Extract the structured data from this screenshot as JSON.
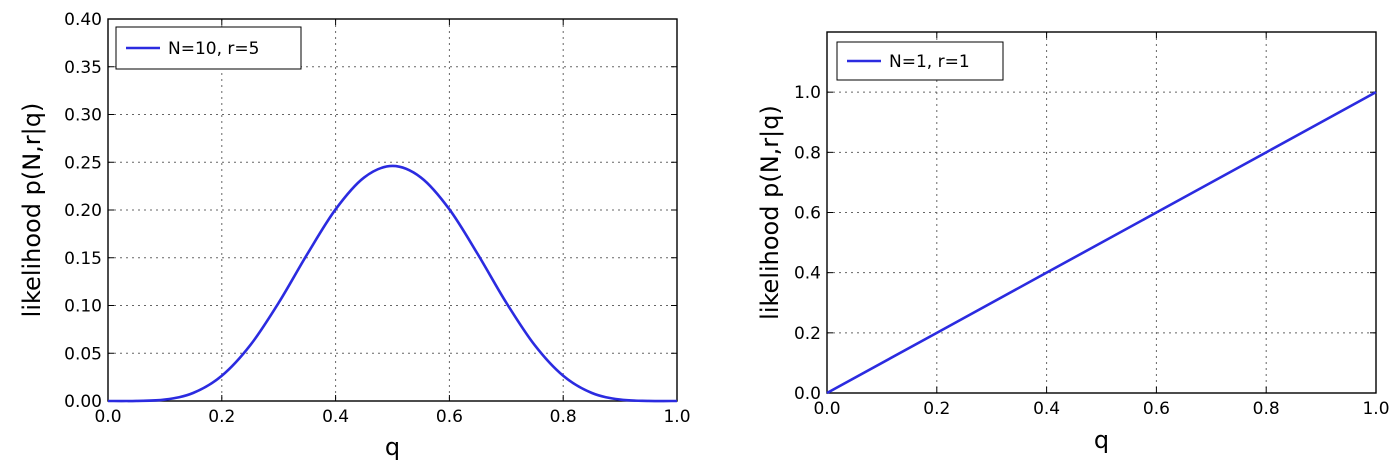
{
  "chart_data": [
    {
      "type": "line",
      "ylabel": "likelihood p(N,r|q)",
      "xlabel": "q",
      "xlim": [
        0.0,
        1.0
      ],
      "ylim": [
        0.0,
        0.4
      ],
      "xticks": [
        "0.0",
        "0.2",
        "0.4",
        "0.6",
        "0.8",
        "1.0"
      ],
      "yticks": [
        "0.00",
        "0.05",
        "0.10",
        "0.15",
        "0.20",
        "0.25",
        "0.30",
        "0.35",
        "0.40"
      ],
      "grid": true,
      "legend_position": "top-left",
      "series": [
        {
          "name": "N=10, r=5",
          "color": "#2b2be0",
          "x": [
            0.0,
            0.05,
            0.1,
            0.15,
            0.2,
            0.25,
            0.3,
            0.35,
            0.4,
            0.45,
            0.5,
            0.55,
            0.6,
            0.65,
            0.7,
            0.75,
            0.8,
            0.85,
            0.9,
            0.95,
            1.0
          ],
          "y": [
            0.0,
            0.0001,
            0.0015,
            0.0085,
            0.0264,
            0.0584,
            0.1029,
            0.1536,
            0.2007,
            0.234,
            0.2461,
            0.234,
            0.2007,
            0.1536,
            0.1029,
            0.0584,
            0.0264,
            0.0085,
            0.0015,
            0.0001,
            0.0
          ]
        }
      ]
    },
    {
      "type": "line",
      "ylabel": "likelihood p(N,r|q)",
      "xlabel": "q",
      "xlim": [
        0.0,
        1.0
      ],
      "ylim": [
        0.0,
        1.2
      ],
      "xticks": [
        "0.0",
        "0.2",
        "0.4",
        "0.6",
        "0.8",
        "1.0"
      ],
      "yticks": [
        "0.0",
        "0.2",
        "0.4",
        "0.6",
        "0.8",
        "1.0"
      ],
      "grid": true,
      "legend_position": "top-left",
      "series": [
        {
          "name": "N=1, r=1",
          "color": "#2b2be0",
          "x": [
            0.0,
            0.2,
            0.4,
            0.6,
            0.8,
            1.0
          ],
          "y": [
            0.0,
            0.2,
            0.4,
            0.6,
            0.8,
            1.0
          ]
        }
      ]
    }
  ]
}
